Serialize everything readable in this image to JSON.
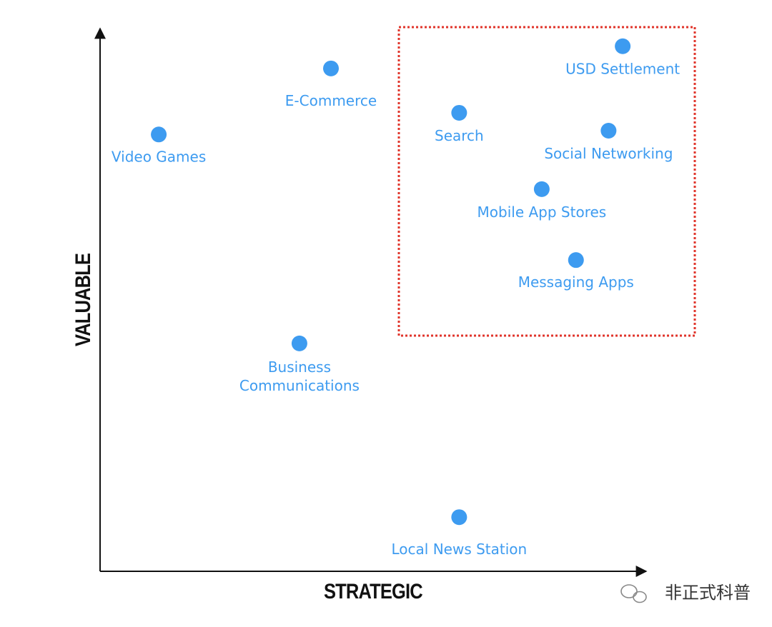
{
  "chart_data": {
    "type": "scatter",
    "xlabel": "STRATEGIC",
    "ylabel": "VALUABLE",
    "labels": [
      "USD Settlement",
      "E-Commerce",
      "Search",
      "Social Networking",
      "Video Games",
      "Mobile App Stores",
      "Messaging Apps",
      "Business\nCommunications",
      "Local News Station"
    ],
    "x": [
      96.2,
      42.5,
      66.1,
      93.6,
      10.8,
      81.3,
      87.6,
      36.7,
      66.1
    ],
    "values": [
      97.0,
      92.9,
      84.7,
      81.4,
      80.7,
      70.6,
      57.5,
      42.1,
      10.0
    ],
    "color": "#3d9bf0",
    "xlim": [
      0,
      100
    ],
    "ylim": [
      0,
      100
    ]
  },
  "watermark": "非正式科普"
}
